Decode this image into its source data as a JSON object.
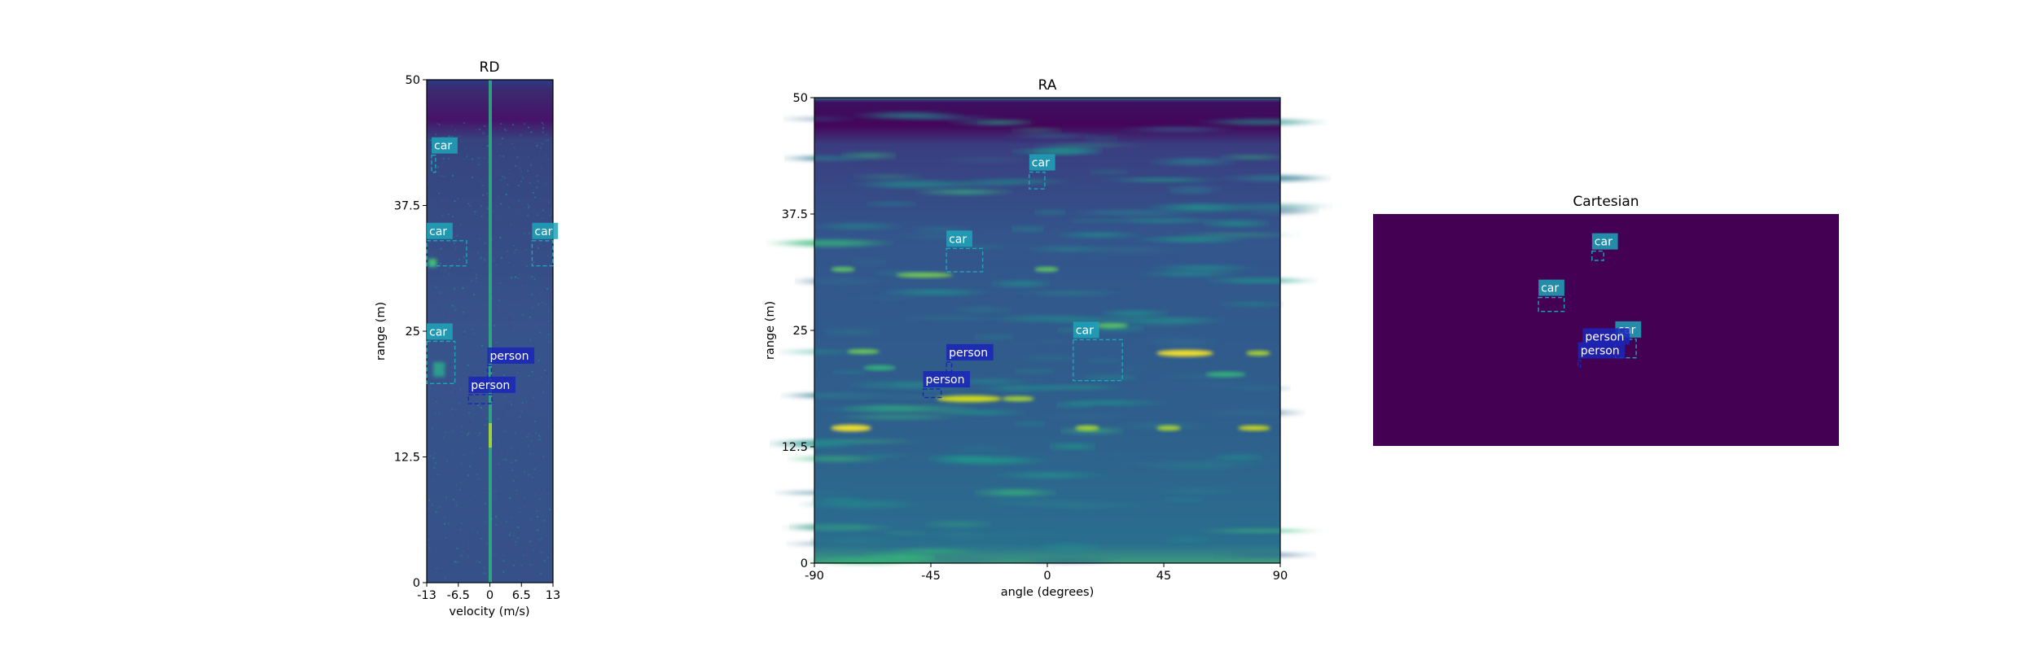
{
  "colors": {
    "car": "#1fa4b9",
    "person": "#1a26b8",
    "background": "#ffffff",
    "axis": "#000000",
    "viridis_low": "#440154",
    "viridis_mid": "#3b528b",
    "viridis_high": "#fde725"
  },
  "chart_data": [
    {
      "type": "heatmap",
      "title": "RD",
      "xlabel": "velocity (m/s)",
      "ylabel": "range (m)",
      "xlim": [
        -13,
        13
      ],
      "ylim": [
        0,
        50
      ],
      "x_ticks": [
        -13,
        -6.5,
        0,
        6.5,
        13
      ],
      "y_ticks": [
        0,
        12.5,
        25,
        37.5,
        50
      ],
      "x_tick_labels": [
        "-13",
        "-6.5",
        "0",
        "6.5",
        "13"
      ],
      "y_tick_labels": [
        "0",
        "12.5",
        "25",
        "37.5",
        "50"
      ],
      "colormap": "viridis",
      "detections": [
        {
          "label": "car",
          "x0": -12,
          "x1": -11.2,
          "y0": 40.8,
          "y1": 42.5
        },
        {
          "label": "car",
          "x0": -13,
          "x1": -4.8,
          "y0": 31.5,
          "y1": 34
        },
        {
          "label": "car",
          "x0": 8.7,
          "x1": 13,
          "y0": 31.5,
          "y1": 34
        },
        {
          "label": "car",
          "x0": -13,
          "x1": -7.2,
          "y0": 19.8,
          "y1": 24
        },
        {
          "label": "person",
          "x0": -0.5,
          "x1": 0.3,
          "y0": 19.7,
          "y1": 21.6
        },
        {
          "label": "person",
          "x0": -4.4,
          "x1": 0.4,
          "y0": 17.8,
          "y1": 18.7
        }
      ]
    },
    {
      "type": "heatmap",
      "title": "RA",
      "xlabel": "angle (degrees)",
      "ylabel": "range (m)",
      "xlim": [
        -90,
        90
      ],
      "ylim": [
        0,
        50
      ],
      "x_ticks": [
        -90,
        -45,
        0,
        45,
        90
      ],
      "y_ticks": [
        0,
        12.5,
        25,
        37.5,
        50
      ],
      "x_tick_labels": [
        "-90",
        "-45",
        "0",
        "45",
        "90"
      ],
      "y_tick_labels": [
        "0",
        "12.5",
        "25",
        "37.5",
        "50"
      ],
      "colormap": "viridis",
      "detections": [
        {
          "label": "car",
          "x0": -7,
          "x1": -1,
          "y0": 40.2,
          "y1": 42
        },
        {
          "label": "car",
          "x0": -39,
          "x1": -25,
          "y0": 31.3,
          "y1": 33.8
        },
        {
          "label": "car",
          "x0": 10,
          "x1": 29,
          "y0": 19.6,
          "y1": 24
        },
        {
          "label": "person",
          "x0": -39,
          "x1": -37,
          "y0": 20.5,
          "y1": 21.6
        },
        {
          "label": "person",
          "x0": -48,
          "x1": -41,
          "y0": 17.8,
          "y1": 18.7
        }
      ]
    },
    {
      "type": "heatmap",
      "title": "Cartesian",
      "xlabel": "",
      "ylabel": "",
      "xlim": [
        0,
        1
      ],
      "ylim": [
        0,
        1
      ],
      "colormap": "viridis",
      "detections": [
        {
          "label": "car",
          "x0": 0.47,
          "x1": 0.495,
          "y0": 0.8,
          "y1": 0.84
        },
        {
          "label": "car",
          "x0": 0.355,
          "x1": 0.41,
          "y0": 0.58,
          "y1": 0.64
        },
        {
          "label": "car",
          "x0": 0.52,
          "x1": 0.565,
          "y0": 0.38,
          "y1": 0.46
        },
        {
          "label": "person",
          "x0": 0.45,
          "x1": 0.455,
          "y0": 0.4,
          "y1": 0.43
        },
        {
          "label": "person",
          "x0": 0.44,
          "x1": 0.445,
          "y0": 0.34,
          "y1": 0.37
        }
      ]
    }
  ]
}
